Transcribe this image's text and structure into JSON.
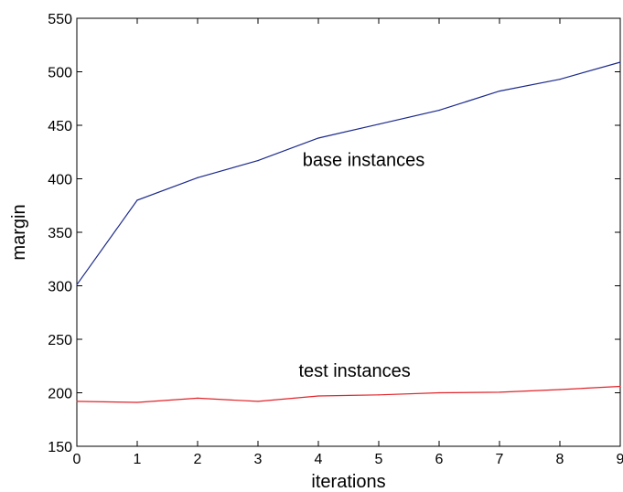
{
  "chart_data": {
    "type": "line",
    "xlabel": "iterations",
    "ylabel": "margin",
    "xlim": [
      0,
      9
    ],
    "ylim": [
      150,
      550
    ],
    "xticks": [
      0,
      1,
      2,
      3,
      4,
      5,
      6,
      7,
      8,
      9
    ],
    "yticks": [
      150,
      200,
      250,
      300,
      350,
      400,
      450,
      500,
      550
    ],
    "grid": false,
    "series": [
      {
        "key": "base",
        "color": "#1c2a8c",
        "x": [
          0,
          1,
          2,
          3,
          4,
          5,
          6,
          7,
          8,
          9
        ],
        "values": [
          301,
          380,
          401,
          417,
          438,
          451,
          464,
          482,
          493,
          509
        ]
      },
      {
        "key": "test",
        "color": "#e0242a",
        "x": [
          0,
          1,
          2,
          3,
          4,
          5,
          6,
          7,
          8,
          9
        ],
        "values": [
          192,
          191,
          195,
          192,
          197,
          198,
          200,
          200.5,
          203,
          206
        ]
      }
    ],
    "annotations": [
      {
        "text": "base instances",
        "x": 4.75,
        "y": 412
      },
      {
        "text": "test instances",
        "x": 4.6,
        "y": 215
      }
    ]
  }
}
